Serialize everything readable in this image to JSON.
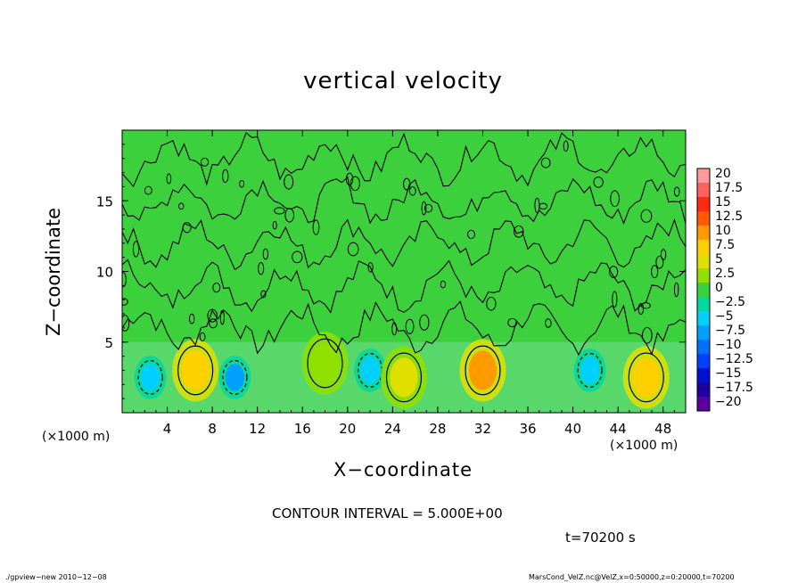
{
  "chart_data": {
    "type": "heatmap",
    "title": "vertical velocity",
    "xlabel": "X−coordinate",
    "ylabel": "Z−coordinate",
    "x_unit_left": "(×1000 m)",
    "x_unit_right": "(×1000 m)",
    "xlim": [
      0,
      50
    ],
    "ylim": [
      0,
      20
    ],
    "x_ticks": [
      4,
      8,
      12,
      16,
      20,
      24,
      28,
      32,
      36,
      40,
      44,
      48
    ],
    "y_ticks": [
      5,
      10,
      15
    ],
    "contour_interval_text": "CONTOUR INTERVAL = 5.000E+00",
    "time_text": "t=70200 s",
    "colorbar": {
      "labels": [
        "20",
        "17.5",
        "15",
        "12.5",
        "10",
        "7.5",
        "5",
        "2.5",
        "0",
        "−2.5",
        "−5",
        "−7.5",
        "−10",
        "−12.5",
        "−15",
        "−17.5",
        "−20"
      ],
      "colors": [
        "#ff9a9a",
        "#ff6060",
        "#ff2a10",
        "#ff5a00",
        "#ff9a00",
        "#ffd000",
        "#e0e000",
        "#90e000",
        "#3cd03c",
        "#00d8a0",
        "#00d0ff",
        "#00a0ff",
        "#0070ff",
        "#0040ff",
        "#0010d0",
        "#2000a0",
        "#5a00a0"
      ]
    },
    "features": [
      {
        "x": 2.5,
        "z": 2.5,
        "value": -5
      },
      {
        "x": 6.5,
        "z": 3.0,
        "value": 7.5
      },
      {
        "x": 10.0,
        "z": 2.5,
        "value": -7.5
      },
      {
        "x": 18.0,
        "z": 3.5,
        "value": 2.5
      },
      {
        "x": 22.0,
        "z": 3.0,
        "value": -5
      },
      {
        "x": 25.0,
        "z": 2.5,
        "value": 5
      },
      {
        "x": 32.0,
        "z": 3.0,
        "value": 10
      },
      {
        "x": 41.5,
        "z": 3.0,
        "value": -5
      },
      {
        "x": 46.5,
        "z": 2.5,
        "value": 7.5
      }
    ]
  },
  "footer": {
    "left": "./gpview−new   2010−12−08",
    "right": "MarsCond_VelZ.nc@VelZ,x=0:50000,z=0:20000,t=70200"
  }
}
